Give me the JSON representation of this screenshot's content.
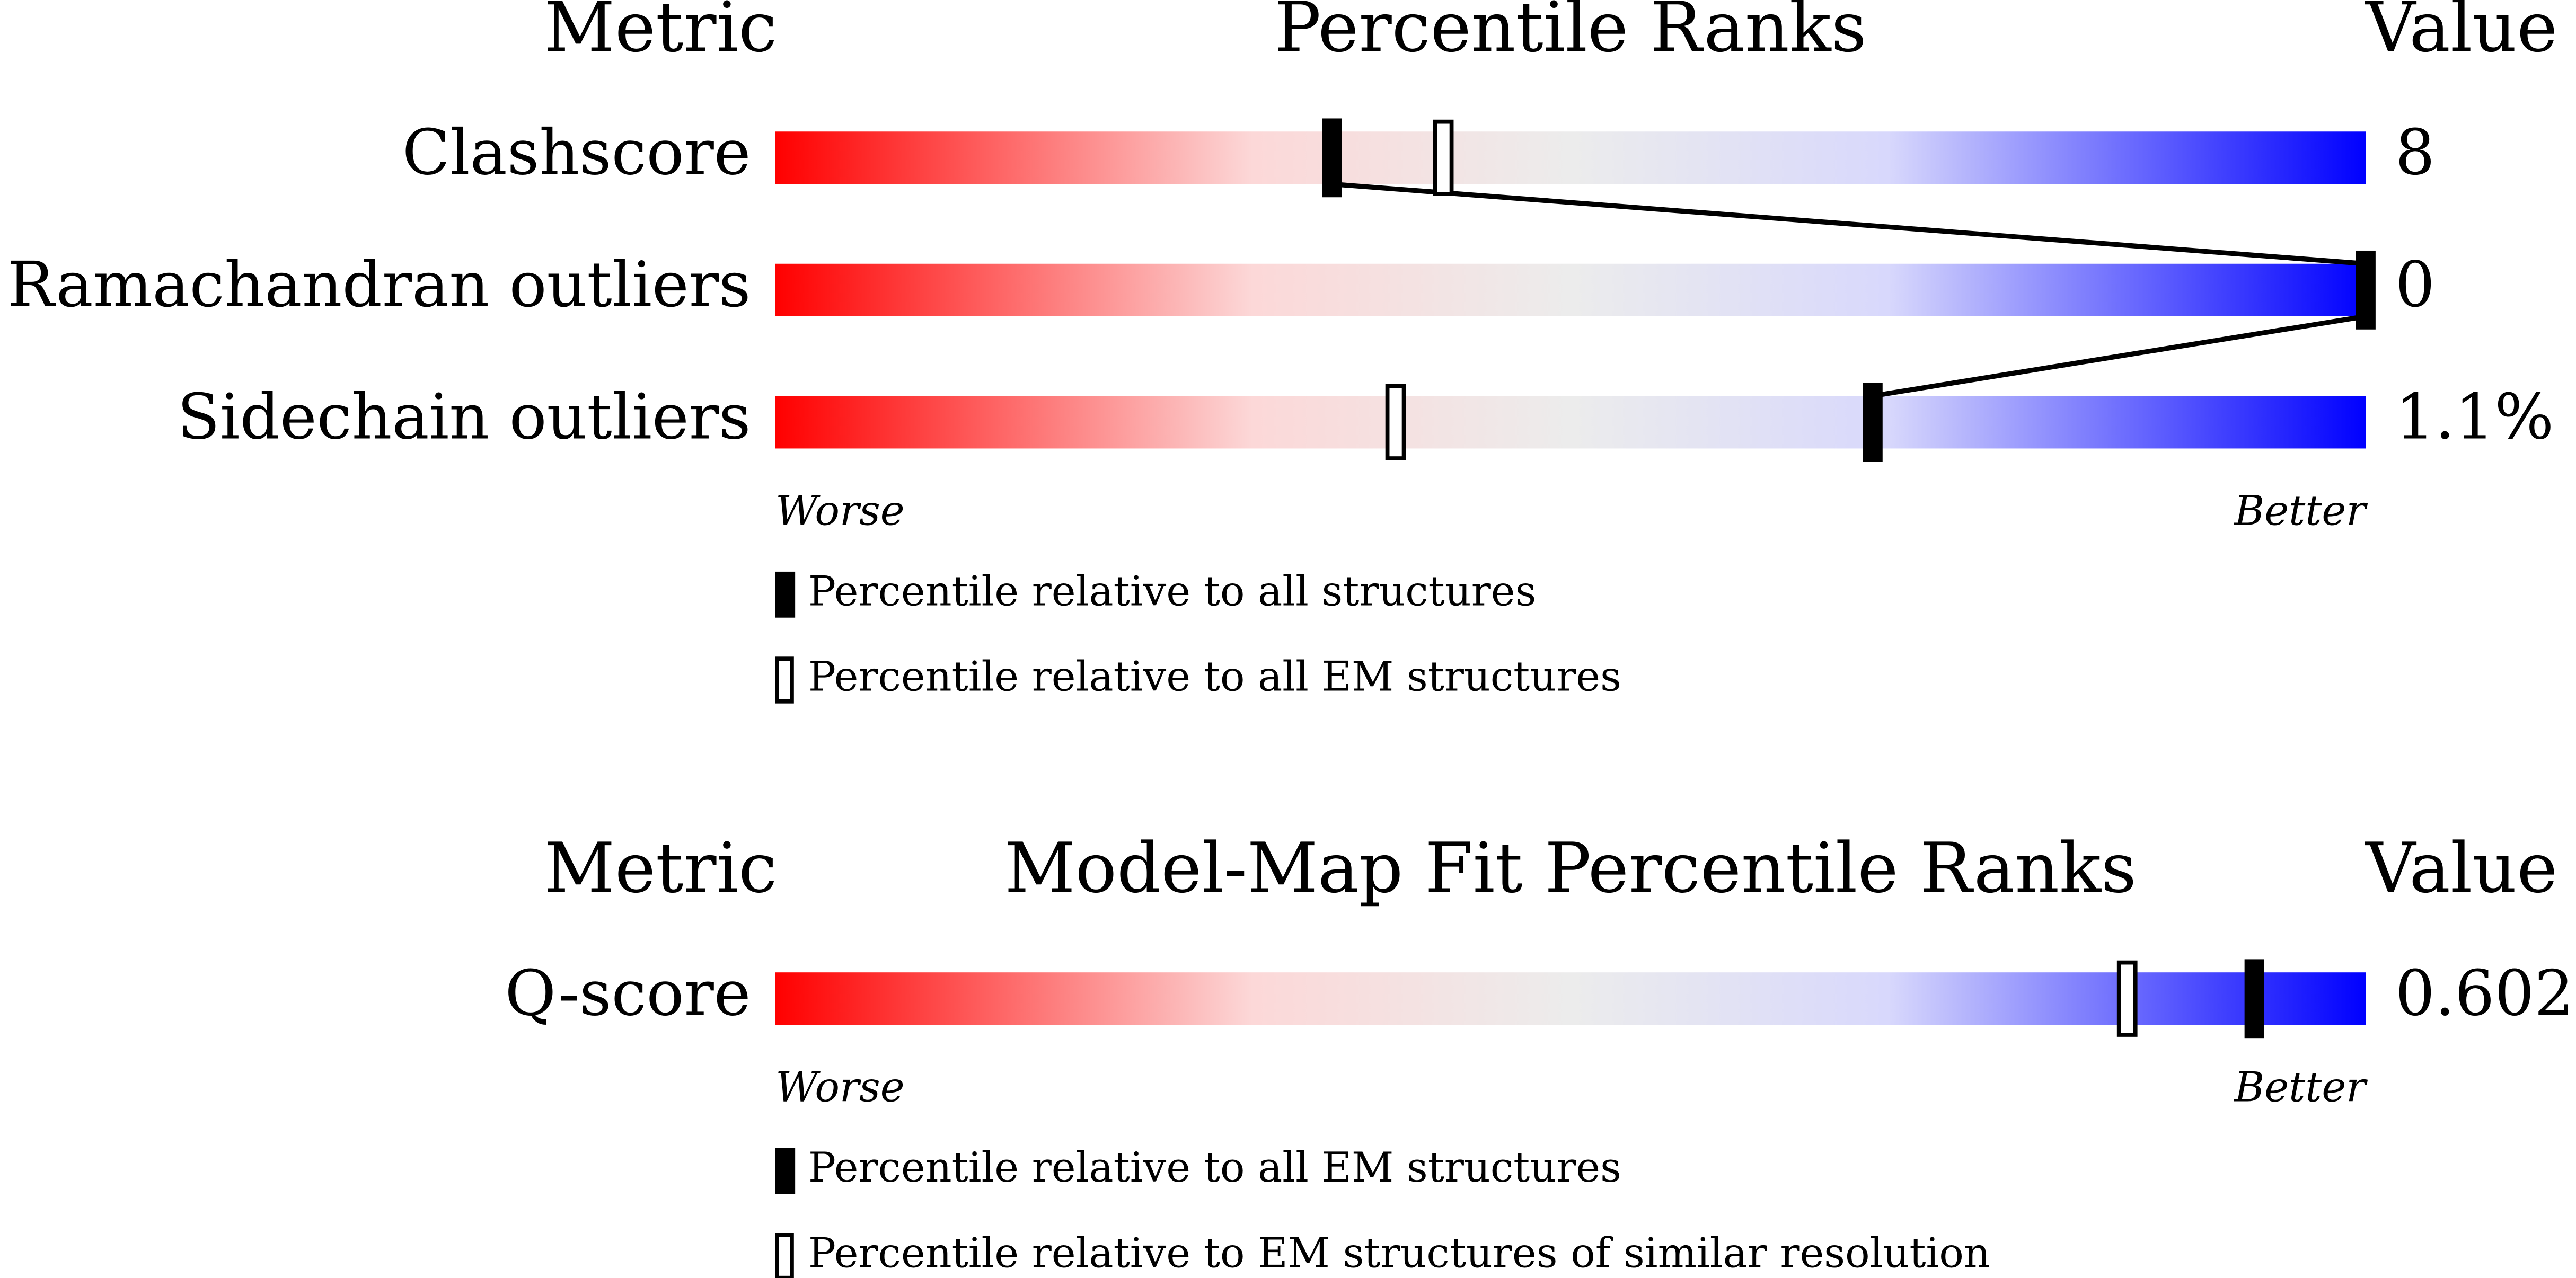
{
  "chart_data": [
    {
      "type": "percentile",
      "metric_header": "Metric",
      "title": "Percentile Ranks",
      "value_header": "Value",
      "categories": [
        "Clashscore",
        "Ramachandran outliers",
        "Sidechain outliers"
      ],
      "metric_values": [
        "8",
        "0",
        "1.1%"
      ],
      "series": [
        {
          "name": "Percentile relative to all structures",
          "style": "filled",
          "color": "#000000",
          "values": [
            35,
            100,
            69
          ]
        },
        {
          "name": "Percentile relative to all EM structures",
          "style": "open",
          "color": "#000000",
          "values": [
            42,
            null,
            39
          ]
        }
      ],
      "connect": true,
      "xlim": [
        0,
        100
      ],
      "low_label": "Worse",
      "high_label": "Better"
    },
    {
      "type": "percentile",
      "metric_header": "Metric",
      "title": "Model-Map Fit Percentile Ranks",
      "value_header": "Value",
      "categories": [
        "Q-score"
      ],
      "metric_values": [
        "0.602"
      ],
      "series": [
        {
          "name": "Percentile relative to all EM structures",
          "style": "filled",
          "color": "#000000",
          "values": [
            93
          ]
        },
        {
          "name": "Percentile relative to EM structures of similar resolution",
          "style": "open",
          "color": "#000000",
          "values": [
            85
          ]
        }
      ],
      "connect": true,
      "xlim": [
        0,
        100
      ],
      "low_label": "Worse",
      "high_label": "Better"
    }
  ]
}
